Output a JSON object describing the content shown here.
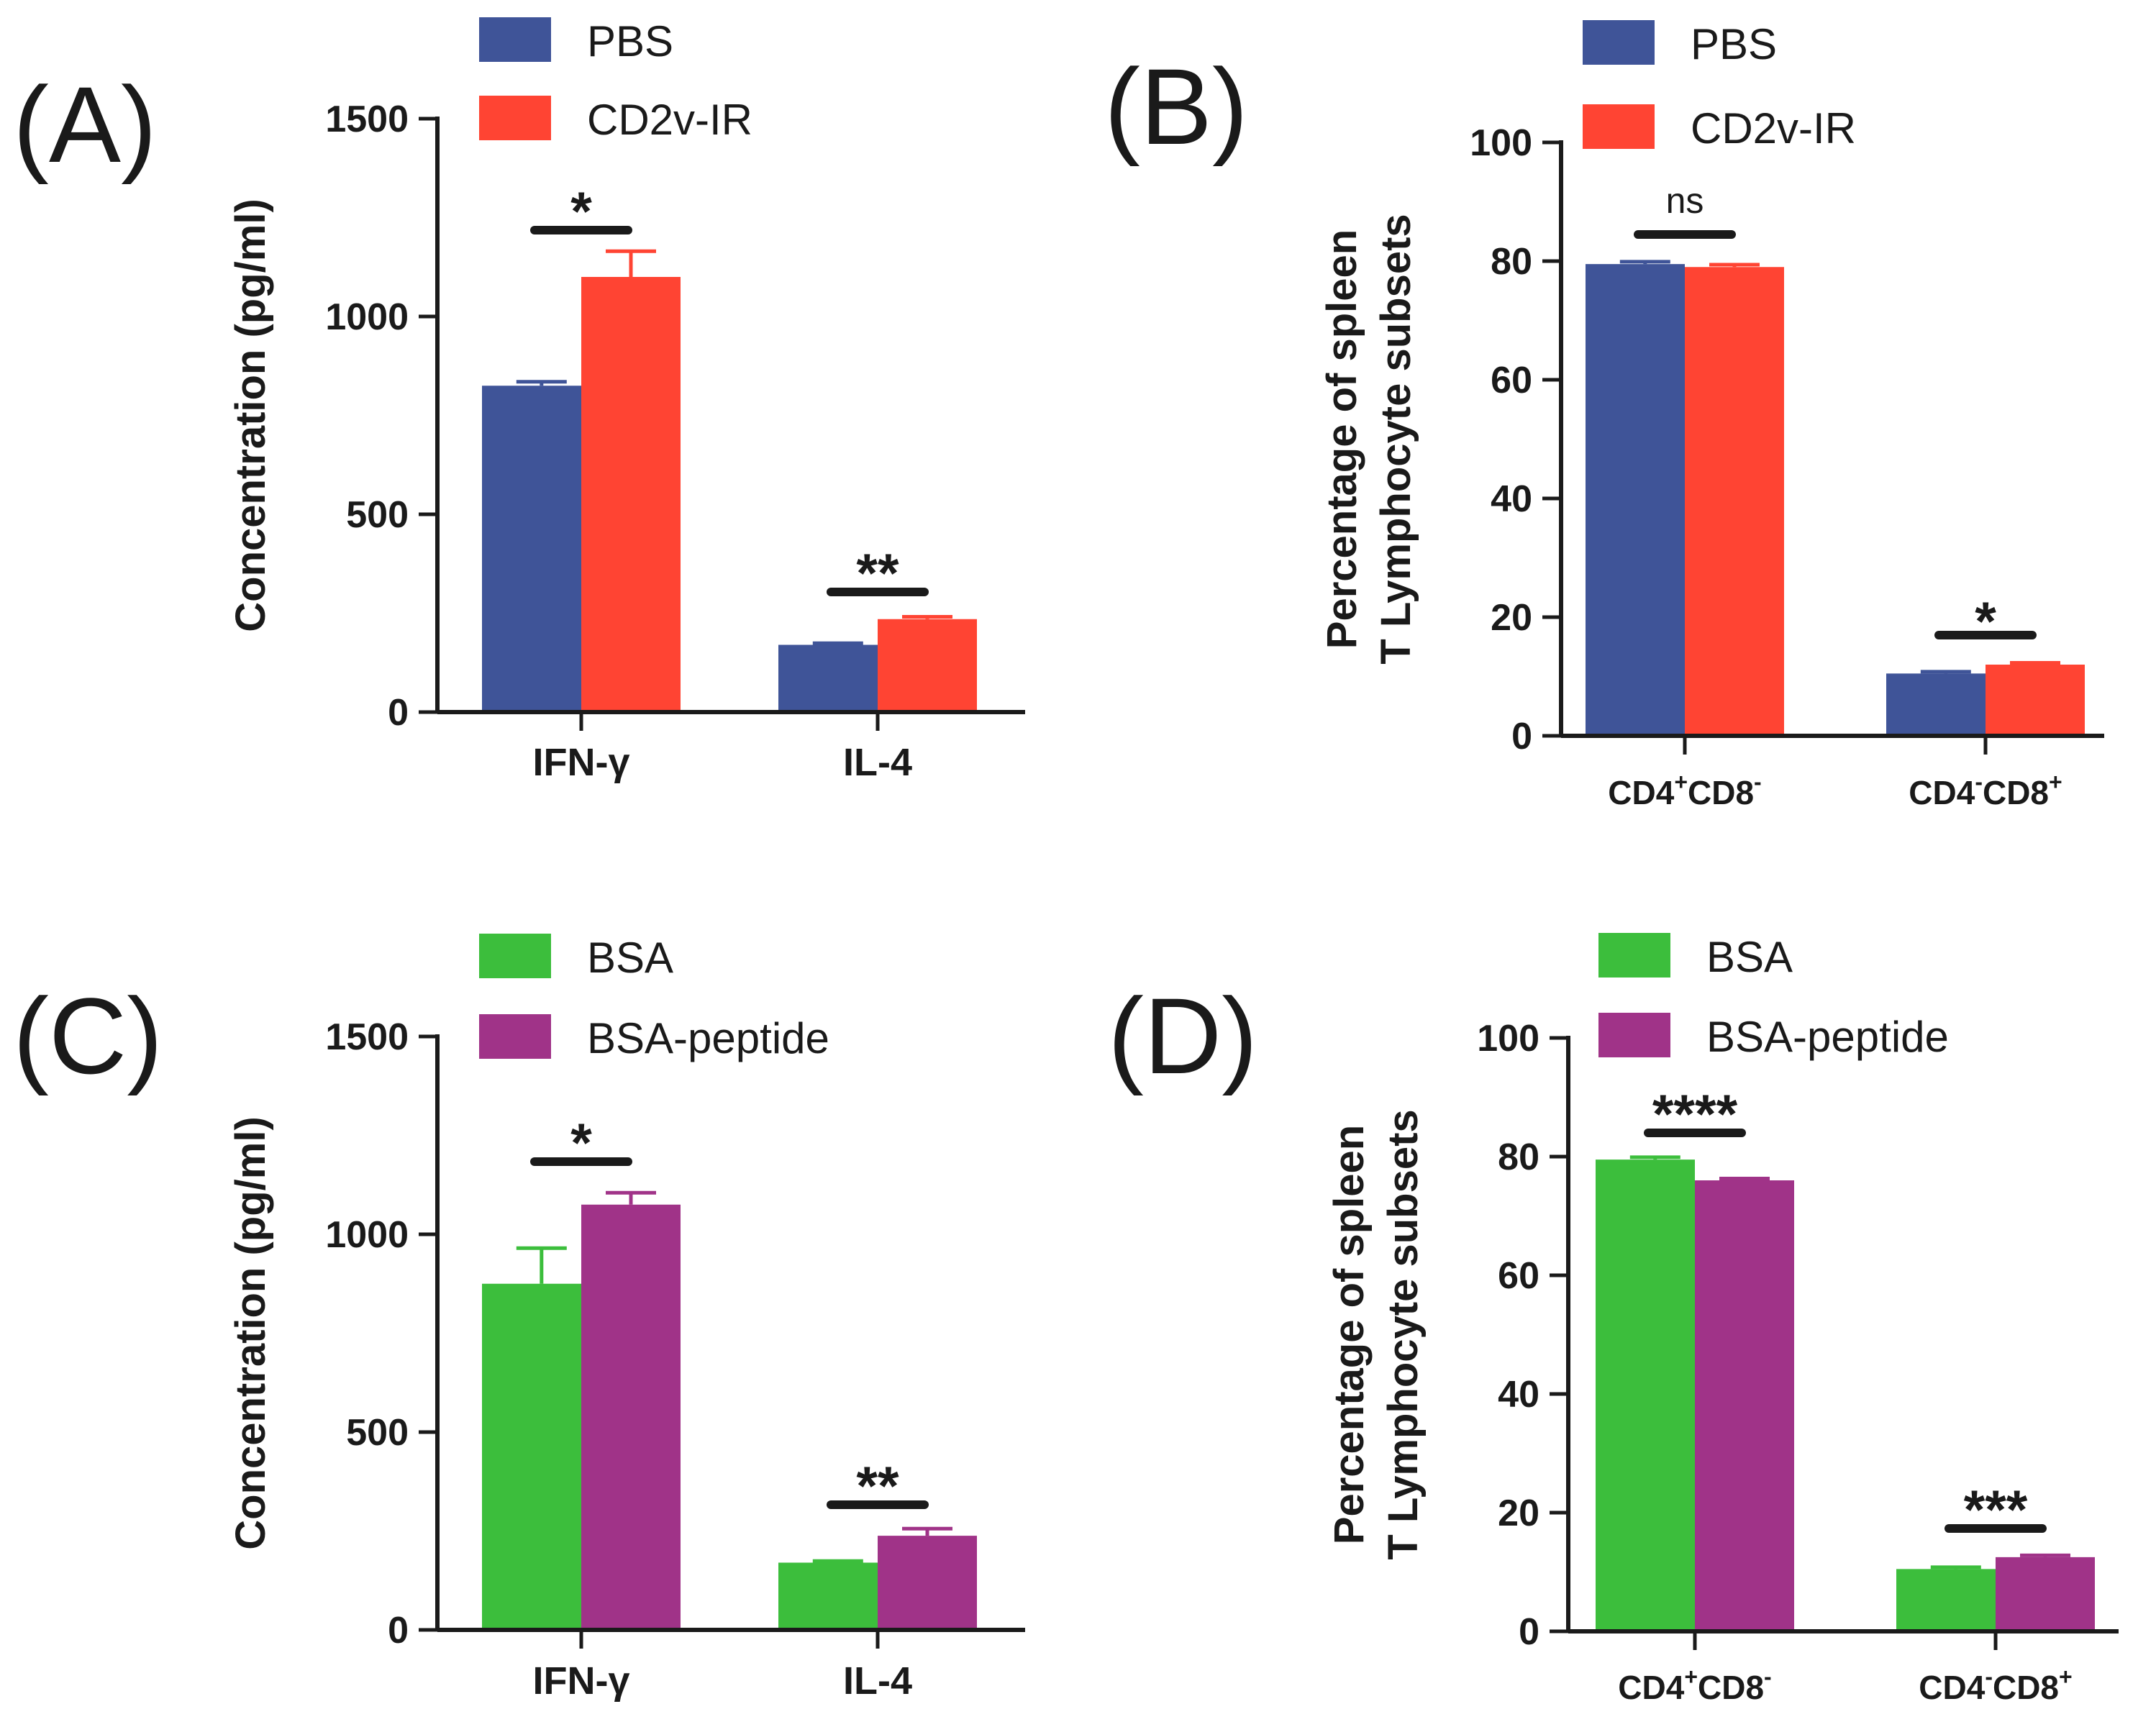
{
  "chart_data": [
    {
      "panel": "(A)",
      "type": "bar",
      "ylabel": "Concentration (pg/ml)",
      "ylim": [
        0,
        1500
      ],
      "yticks": [
        "0",
        "500",
        "1000",
        "1500"
      ],
      "categories": [
        "IFN-γ",
        "IL-4"
      ],
      "series": [
        {
          "name": "PBS",
          "color": "#3f5498",
          "values": [
            825,
            170
          ],
          "errors": [
            10,
            4
          ]
        },
        {
          "name": "CD2v-IR",
          "color": "#ff4433",
          "values": [
            1100,
            235
          ],
          "errors": [
            65,
            6
          ]
        }
      ],
      "significance": [
        "*",
        "**"
      ]
    },
    {
      "panel": "(B)",
      "type": "bar",
      "ylabel": [
        "Percentage of spleen",
        "T Lymphocyte subsets"
      ],
      "ylim": [
        0,
        100
      ],
      "yticks": [
        "0",
        "20",
        "40",
        "60",
        "80",
        "100"
      ],
      "categories": [
        {
          "a": "CD4",
          "s1": "+",
          "b": "CD8",
          "s2": "-"
        },
        {
          "a": "CD4",
          "s1": "-",
          "b": "CD8",
          "s2": "+"
        }
      ],
      "series": [
        {
          "name": "PBS",
          "color": "#3f5498",
          "values": [
            79.5,
            10.5
          ],
          "errors": [
            0.4,
            0.3
          ]
        },
        {
          "name": "CD2v-IR",
          "color": "#ff4433",
          "values": [
            79.0,
            12.0
          ],
          "errors": [
            0.4,
            0.3
          ]
        }
      ],
      "significance": [
        "ns",
        "*"
      ]
    },
    {
      "panel": "(C)",
      "type": "bar",
      "ylabel": "Concentration (pg/ml)",
      "ylim": [
        0,
        1500
      ],
      "yticks": [
        "0",
        "500",
        "1000",
        "1500"
      ],
      "categories": [
        "IFN-γ",
        "IL-4"
      ],
      "series": [
        {
          "name": "BSA",
          "color": "#3cbe3c",
          "values": [
            875,
            170
          ],
          "errors": [
            90,
            4
          ]
        },
        {
          "name": "BSA-peptide",
          "color": "#a03388",
          "values": [
            1075,
            238
          ],
          "errors": [
            30,
            18
          ]
        }
      ],
      "significance": [
        "*",
        "**"
      ]
    },
    {
      "panel": "(D)",
      "type": "bar",
      "ylabel": [
        "Percentage of spleen",
        "T Lymphocyte subsets"
      ],
      "ylim": [
        0,
        100
      ],
      "yticks": [
        "0",
        "20",
        "40",
        "60",
        "80",
        "100"
      ],
      "categories": [
        {
          "a": "CD4",
          "s1": "+",
          "b": "CD8",
          "s2": "-"
        },
        {
          "a": "CD4",
          "s1": "-",
          "b": "CD8",
          "s2": "+"
        }
      ],
      "series": [
        {
          "name": "BSA",
          "color": "#3cbe3c",
          "values": [
            79.5,
            10.5
          ],
          "errors": [
            0.4,
            0.3
          ]
        },
        {
          "name": "BSA-peptide",
          "color": "#a03388",
          "values": [
            76.0,
            12.5
          ],
          "errors": [
            0.3,
            0.3
          ]
        }
      ],
      "significance": [
        "****",
        "***"
      ]
    }
  ]
}
